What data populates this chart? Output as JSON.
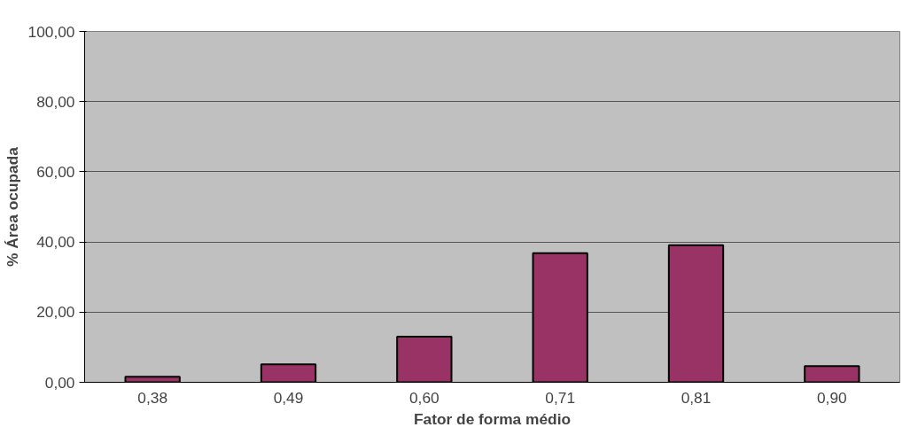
{
  "chart_data": {
    "type": "bar",
    "xlabel": "Fator de forma médio",
    "ylabel": "% Área ocupada",
    "categories": [
      "0,38",
      "0,49",
      "0,60",
      "0,71",
      "0,81",
      "0,90"
    ],
    "values": [
      1.6,
      5.1,
      13.0,
      36.8,
      39.1,
      4.6
    ],
    "color": "#993366",
    "ylim": [
      0,
      100
    ],
    "yticks": [
      {
        "value": 0,
        "label": "0,00"
      },
      {
        "value": 20,
        "label": "20,00"
      },
      {
        "value": 40,
        "label": "40,00"
      },
      {
        "value": 60,
        "label": "60,00"
      },
      {
        "value": 80,
        "label": "80,00"
      },
      {
        "value": 100,
        "label": "100,00"
      }
    ],
    "grid": "y"
  }
}
